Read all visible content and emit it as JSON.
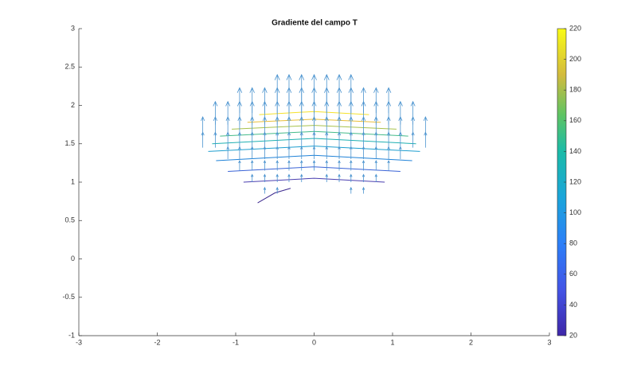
{
  "chart_data": {
    "type": "quiver",
    "title": "Gradiente del campo T",
    "xlim": [
      -3,
      3
    ],
    "xticks": [
      -3,
      -2,
      -1,
      0,
      1,
      2,
      3
    ],
    "ylim": [
      -1,
      3
    ],
    "yticks": [
      -1,
      -0.5,
      0,
      0.5,
      1,
      1.5,
      2,
      2.5,
      3
    ],
    "arrow_color": "#4a93cf",
    "rows": [
      {
        "y": 2.05,
        "v": 0.35,
        "x": [
          -0.47,
          -0.32,
          -0.16,
          0,
          0.16,
          0.32,
          0.47
        ]
      },
      {
        "y": 1.9,
        "v": 0.33,
        "x": [
          -0.95,
          -0.79,
          -0.63,
          -0.47,
          -0.32,
          -0.16,
          0,
          0.16,
          0.32,
          0.47,
          0.63,
          0.79,
          0.95
        ]
      },
      {
        "y": 1.75,
        "v": 0.3,
        "x": [
          -1.26,
          -1.1,
          -0.95,
          -0.79,
          -0.63,
          -0.47,
          -0.32,
          -0.16,
          0,
          0.16,
          0.32,
          0.47,
          0.63,
          0.79,
          0.95,
          1.1,
          1.26
        ]
      },
      {
        "y": 1.6,
        "v": 0.25,
        "x": [
          -1.42,
          -1.26,
          -1.1,
          -0.95,
          -0.79,
          -0.63,
          -0.47,
          -0.32,
          -0.16,
          0,
          0.16,
          0.32,
          0.47,
          0.63,
          0.79,
          0.95,
          1.1,
          1.26,
          1.42
        ]
      },
      {
        "y": 1.45,
        "v": 0.2,
        "x": [
          -1.42,
          -1.26,
          -1.1,
          -0.95,
          -0.79,
          -0.63,
          -0.47,
          -0.32,
          -0.16,
          0,
          0.16,
          0.32,
          0.47,
          0.63,
          0.79,
          0.95,
          1.1,
          1.26,
          1.42
        ]
      },
      {
        "y": 1.3,
        "v": 0.16,
        "x": [
          -1.1,
          -0.95,
          -0.79,
          -0.63,
          -0.47,
          -0.32,
          -0.16,
          0,
          0.16,
          0.32,
          0.47,
          0.63,
          0.79,
          0.95,
          1.1
        ]
      },
      {
        "y": 1.15,
        "v": 0.13,
        "x": [
          -0.95,
          -0.79,
          -0.63,
          -0.47,
          -0.32,
          -0.16,
          0,
          0.16,
          0.32,
          0.47,
          0.63,
          0.79,
          0.95
        ]
      },
      {
        "y": 1.0,
        "v": 0.1,
        "x": [
          -0.79,
          -0.63,
          -0.47,
          -0.32,
          -0.16,
          0.16,
          0.32,
          0.47,
          0.63,
          0.79
        ]
      },
      {
        "y": 0.85,
        "v": 0.08,
        "x": [
          -0.63,
          -0.47,
          0.47,
          0.63
        ]
      }
    ],
    "contours": [
      {
        "level": 210,
        "color": "#f5e12b",
        "x": [
          -0.7,
          0,
          0.7
        ],
        "y": [
          1.88,
          1.92,
          1.88
        ]
      },
      {
        "level": 190,
        "color": "#e8bf3a",
        "x": [
          -0.85,
          0,
          0.85
        ],
        "y": [
          1.78,
          1.82,
          1.78
        ]
      },
      {
        "level": 170,
        "color": "#a8c24c",
        "x": [
          -1.05,
          0,
          1.05
        ],
        "y": [
          1.69,
          1.74,
          1.69
        ]
      },
      {
        "level": 150,
        "color": "#45bb8a",
        "x": [
          -1.2,
          0,
          1.2
        ],
        "y": [
          1.6,
          1.66,
          1.6
        ]
      },
      {
        "level": 130,
        "color": "#1fb0b2",
        "x": [
          -1.3,
          0,
          1.3
        ],
        "y": [
          1.5,
          1.57,
          1.5
        ]
      },
      {
        "level": 110,
        "color": "#1e9ecf",
        "x": [
          -1.35,
          0,
          1.35
        ],
        "y": [
          1.4,
          1.47,
          1.4
        ]
      },
      {
        "level": 90,
        "color": "#1f82d8",
        "x": [
          -1.25,
          0,
          1.25
        ],
        "y": [
          1.28,
          1.35,
          1.28
        ]
      },
      {
        "level": 70,
        "color": "#3a63d6",
        "x": [
          -1.1,
          0,
          1.1
        ],
        "y": [
          1.14,
          1.2,
          1.14
        ]
      },
      {
        "level": 50,
        "color": "#4a3fb0",
        "x": [
          -0.9,
          0,
          0.9
        ],
        "y": [
          1.0,
          1.05,
          1.0
        ]
      },
      {
        "level": 30,
        "color": "#3d2a8f",
        "x": [
          -0.72,
          -0.5,
          -0.3
        ],
        "y": [
          0.73,
          0.86,
          0.92
        ]
      }
    ],
    "colorbar": {
      "clim": [
        20,
        220
      ],
      "ticks": [
        20,
        40,
        60,
        80,
        100,
        120,
        140,
        160,
        180,
        200,
        220
      ]
    }
  }
}
